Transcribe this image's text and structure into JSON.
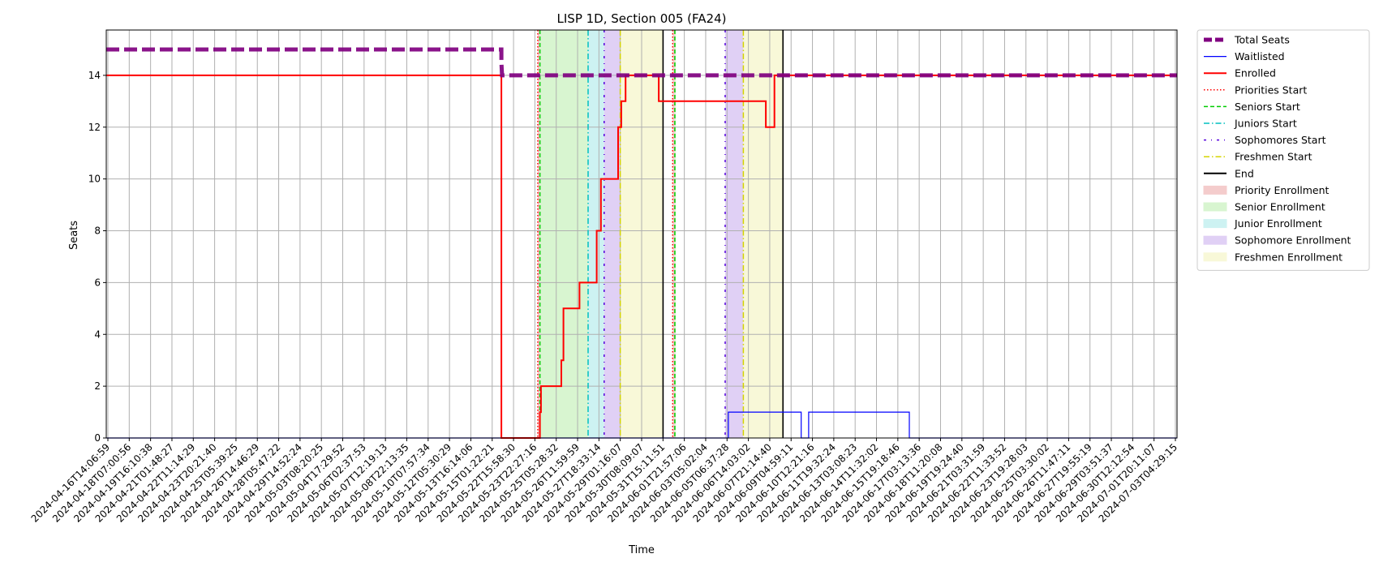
{
  "chart_data": {
    "type": "line",
    "title": "LISP 1D, Section 005 (FA24)",
    "xlabel": "Time",
    "ylabel": "Seats",
    "ylim": [
      0,
      15.75
    ],
    "yticks": [
      0,
      2,
      4,
      6,
      8,
      10,
      12,
      14
    ],
    "grid": true,
    "legend_position": "outside-right",
    "x_tick_labels": [
      "2024-04-16T14:06:59",
      "2024-04-18T07:00:56",
      "2024-04-19T16:10:38",
      "2024-04-21T01:48:27",
      "2024-04-22T11:14:29",
      "2024-04-23T20:21:40",
      "2024-04-25T05:39:25",
      "2024-04-26T14:46:29",
      "2024-04-28T05:47:22",
      "2024-04-29T14:52:24",
      "2024-05-03T08:20:25",
      "2024-05-04T17:29:52",
      "2024-05-06T02:37:53",
      "2024-05-07T12:19:13",
      "2024-05-08T22:13:35",
      "2024-05-10T07:57:34",
      "2024-05-12T05:30:29",
      "2024-05-13T16:14:06",
      "2024-05-15T01:22:21",
      "2024-05-22T15:58:30",
      "2024-05-23T22:27:16",
      "2024-05-25T05:28:32",
      "2024-05-26T11:59:59",
      "2024-05-27T18:33:14",
      "2024-05-29T01:16:07",
      "2024-05-30T08:09:07",
      "2024-05-31T15:11:51",
      "2024-06-01T21:57:06",
      "2024-06-03T05:02:04",
      "2024-06-05T06:37:28",
      "2024-06-06T14:03:02",
      "2024-06-07T21:14:40",
      "2024-06-09T04:59:11",
      "2024-06-10T12:21:16",
      "2024-06-11T19:32:24",
      "2024-06-13T03:08:23",
      "2024-06-14T11:32:02",
      "2024-06-15T19:18:46",
      "2024-06-17T03:13:36",
      "2024-06-18T11:20:08",
      "2024-06-19T19:24:40",
      "2024-06-21T03:31:59",
      "2024-06-22T11:33:52",
      "2024-06-23T19:28:03",
      "2024-06-25T03:30:02",
      "2024-06-26T11:47:11",
      "2024-06-27T19:55:19",
      "2024-06-29T03:51:37",
      "2024-06-30T12:12:54",
      "2024-07-01T20:11:07",
      "2024-07-03T04:29:15"
    ],
    "x_domain": [
      0,
      100
    ],
    "series": [
      {
        "name": "Total Seats",
        "color": "#800080",
        "style": "dashed-thick",
        "x": [
          0,
          36.9,
          36.9,
          36.96,
          100
        ],
        "y": [
          15,
          15,
          14.5,
          14,
          14
        ]
      },
      {
        "name": "Waitlisted",
        "color": "#0000ff",
        "style": "solid-thin",
        "x": [
          0,
          58.1,
          58.1,
          64.9,
          64.9,
          65.6,
          65.6,
          75.0,
          75.0,
          100
        ],
        "y": [
          0,
          0,
          1,
          1,
          0,
          0,
          1,
          1,
          0,
          0
        ]
      },
      {
        "name": "Enrolled",
        "color": "#ff0000",
        "style": "solid",
        "x": [
          0,
          36.9,
          36.9,
          40.5,
          40.5,
          40.6,
          40.6,
          42.5,
          42.5,
          42.7,
          42.7,
          44.2,
          44.2,
          45.8,
          45.8,
          46.2,
          46.2,
          47.8,
          47.8,
          48.1,
          48.1,
          48.5,
          48.5,
          49.0,
          49.0,
          50.0,
          50.0,
          50.2,
          50.2,
          51.6,
          51.6,
          61.6,
          61.6,
          61.9,
          61.9,
          62.4,
          62.4,
          62.4,
          100
        ],
        "y": [
          14,
          14,
          0,
          0,
          1,
          1,
          2,
          2,
          3,
          3,
          5,
          5,
          6,
          6,
          8,
          8,
          10,
          10,
          12,
          12,
          13,
          13,
          14,
          14,
          14,
          14,
          14,
          14,
          14,
          14,
          13,
          13,
          12,
          12,
          12,
          12,
          14,
          14,
          14
        ]
      }
    ],
    "vertical_lines": [
      {
        "name": "Priorities Start",
        "color": "#ff0000",
        "style": "dotted",
        "x": [
          40.3,
          52.9
        ]
      },
      {
        "name": "Seniors Start",
        "color": "#00cc00",
        "style": "dashed",
        "x": [
          40.5,
          53.1
        ]
      },
      {
        "name": "Juniors Start",
        "color": "#00bfbf",
        "style": "dashdot",
        "x": [
          45.0
        ]
      },
      {
        "name": "Sophomores Start",
        "color": "#5500dd",
        "style": "dashdot-sparse",
        "x": [
          46.5,
          57.8
        ]
      },
      {
        "name": "Freshmen Start",
        "color": "#d4d400",
        "style": "dashdot",
        "x": [
          48.0,
          59.5
        ]
      },
      {
        "name": "End",
        "color": "#000000",
        "style": "solid",
        "x": [
          52.0,
          63.2
        ]
      }
    ],
    "shaded_regions": [
      {
        "name": "Priority Enrollment",
        "color": "#f4cccc",
        "spans": [
          [
            40.3,
            40.5
          ],
          [
            52.9,
            53.1
          ]
        ]
      },
      {
        "name": "Senior Enrollment",
        "color": "#d8f5d0",
        "spans": [
          [
            40.5,
            45.0
          ],
          [
            53.1,
            53.2
          ]
        ]
      },
      {
        "name": "Junior Enrollment",
        "color": "#cdf2f2",
        "spans": [
          [
            45.0,
            46.5
          ]
        ]
      },
      {
        "name": "Sophomore Enrollment",
        "color": "#e0d0f5",
        "spans": [
          [
            46.5,
            48.0
          ],
          [
            57.8,
            59.5
          ]
        ]
      },
      {
        "name": "Freshmen Enrollment",
        "color": "#f8f8d8",
        "spans": [
          [
            48.0,
            52.0
          ],
          [
            59.5,
            63.2
          ]
        ]
      }
    ],
    "legend": [
      {
        "label": "Total Seats",
        "kind": "line",
        "color": "#800080",
        "style": "dashed-thick"
      },
      {
        "label": "Waitlisted",
        "kind": "line",
        "color": "#0000ff",
        "style": "solid-thin"
      },
      {
        "label": "Enrolled",
        "kind": "line",
        "color": "#ff0000",
        "style": "solid"
      },
      {
        "label": "Priorities Start",
        "kind": "line",
        "color": "#ff0000",
        "style": "dotted"
      },
      {
        "label": "Seniors Start",
        "kind": "line",
        "color": "#00cc00",
        "style": "dashed"
      },
      {
        "label": "Juniors Start",
        "kind": "line",
        "color": "#00bfbf",
        "style": "dashdot"
      },
      {
        "label": "Sophomores Start",
        "kind": "line",
        "color": "#5500dd",
        "style": "dashdot-sparse"
      },
      {
        "label": "Freshmen Start",
        "kind": "line",
        "color": "#d4d400",
        "style": "dashdot"
      },
      {
        "label": "End",
        "kind": "line",
        "color": "#000000",
        "style": "solid"
      },
      {
        "label": "Priority Enrollment",
        "kind": "patch",
        "color": "#f4cccc"
      },
      {
        "label": "Senior Enrollment",
        "kind": "patch",
        "color": "#d8f5d0"
      },
      {
        "label": "Junior Enrollment",
        "kind": "patch",
        "color": "#cdf2f2"
      },
      {
        "label": "Sophomore Enrollment",
        "kind": "patch",
        "color": "#e0d0f5"
      },
      {
        "label": "Freshmen Enrollment",
        "kind": "patch",
        "color": "#f8f8d8"
      }
    ]
  }
}
